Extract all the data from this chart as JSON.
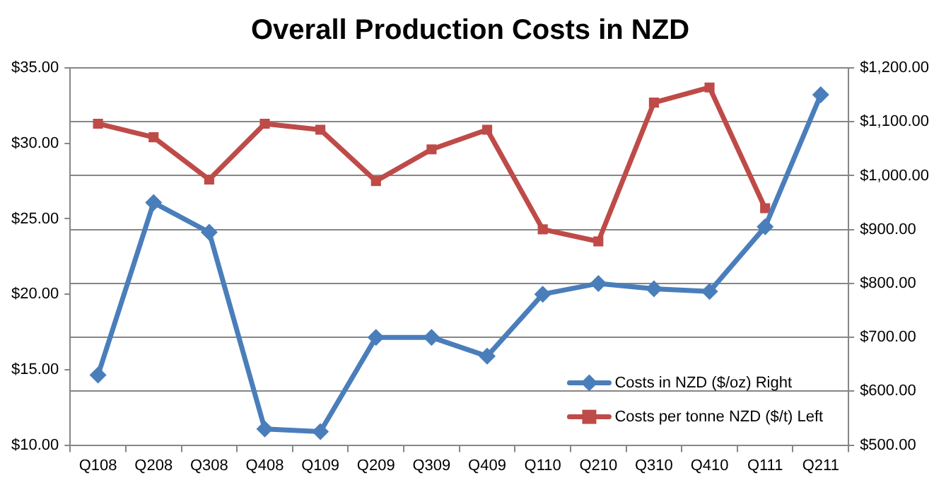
{
  "chart_data": {
    "type": "line",
    "title": "Overall Production Costs in NZD",
    "categories": [
      "Q108",
      "Q208",
      "Q308",
      "Q408",
      "Q109",
      "Q209",
      "Q309",
      "Q409",
      "Q110",
      "Q210",
      "Q310",
      "Q410",
      "Q111",
      "Q211"
    ],
    "series": [
      {
        "name": "Costs in NZD ($/oz) Right",
        "color": "#4a7ebb",
        "axis": "y2",
        "marker": "diamond",
        "values": [
          630,
          950,
          895,
          530,
          525,
          700,
          700,
          665,
          780,
          800,
          790,
          785,
          905,
          1150
        ]
      },
      {
        "name": "Costs per tonne NZD ($/t) Left",
        "color": "#be4b48",
        "marker": "square",
        "values": [
          31.3,
          30.4,
          27.6,
          31.3,
          30.9,
          27.5,
          29.6,
          30.9,
          24.3,
          23.5,
          32.7,
          33.7,
          25.7,
          null
        ]
      }
    ],
    "ylim": [
      10,
      35
    ],
    "yticks": [
      {
        "value": 10,
        "label": "$10.00"
      },
      {
        "value": 15,
        "label": "$15.00"
      },
      {
        "value": 20,
        "label": "$20.00"
      },
      {
        "value": 25,
        "label": "$25.00"
      },
      {
        "value": 30,
        "label": "$30.00"
      },
      {
        "value": 35,
        "label": "$35.00"
      }
    ],
    "y2lim": [
      500,
      1200
    ],
    "y2ticks": [
      {
        "value": 500,
        "label": "$500.00"
      },
      {
        "value": 600,
        "label": "$600.00"
      },
      {
        "value": 700,
        "label": "$700.00"
      },
      {
        "value": 800,
        "label": "$800.00"
      },
      {
        "value": 900,
        "label": "$900.00"
      },
      {
        "value": 1000,
        "label": "$1,000.00"
      },
      {
        "value": 1100,
        "label": "$1,100.00"
      },
      {
        "value": 1200,
        "label": "$1,200.00"
      }
    ],
    "grid": "y",
    "legend": "bottom right",
    "line_style": "solid"
  }
}
